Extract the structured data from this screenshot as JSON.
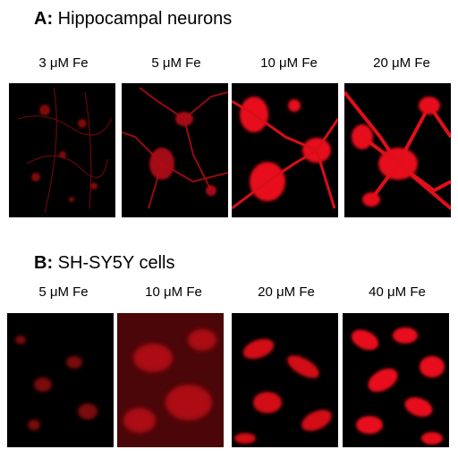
{
  "section_a": {
    "letter": "A:",
    "title": "Hippocampal neurons",
    "labels": [
      "3 μM Fe",
      "5 μM Fe",
      "10 μM Fe",
      "20 μM Fe"
    ]
  },
  "section_b": {
    "letter": "B:",
    "title": "SH-SY5Y cells",
    "labels": [
      "5 μM Fe",
      "10 μM Fe",
      "20 μM Fe",
      "40 μM Fe"
    ]
  },
  "colors": {
    "stain": "#e8101a",
    "background": "#000000"
  }
}
